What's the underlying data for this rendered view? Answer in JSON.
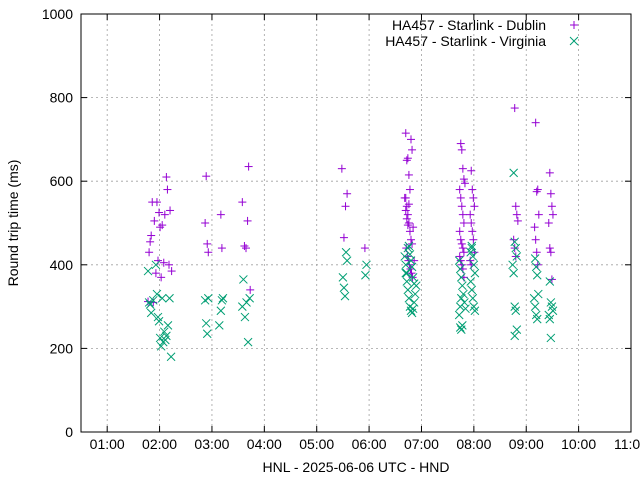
{
  "chart_data": {
    "type": "scatter",
    "title": "",
    "xlabel": "HNL - 2025-06-06 UTC - HND",
    "ylabel": "Round trip time (ms)",
    "xlim": [
      0.5,
      11.0
    ],
    "ylim": [
      0,
      1000
    ],
    "grid": true,
    "legend_position": "top-right",
    "x_ticks": [
      {
        "value": 1,
        "label": "01:00"
      },
      {
        "value": 2,
        "label": "02:00"
      },
      {
        "value": 3,
        "label": "03:00"
      },
      {
        "value": 4,
        "label": "04:00"
      },
      {
        "value": 5,
        "label": "05:00"
      },
      {
        "value": 6,
        "label": "06:00"
      },
      {
        "value": 7,
        "label": "07:00"
      },
      {
        "value": 8,
        "label": "08:00"
      },
      {
        "value": 9,
        "label": "09:00"
      },
      {
        "value": 10,
        "label": "10:00"
      },
      {
        "value": 11,
        "label": "11:00"
      }
    ],
    "y_ticks": [
      {
        "value": 0,
        "label": "0"
      },
      {
        "value": 200,
        "label": "200"
      },
      {
        "value": 400,
        "label": "400"
      },
      {
        "value": 600,
        "label": "600"
      },
      {
        "value": 800,
        "label": "800"
      },
      {
        "value": 1000,
        "label": "1000"
      }
    ],
    "series": [
      {
        "name": "HA457 - Starlink - Dublin",
        "marker": "plus",
        "color": "#9400d3",
        "points": [
          [
            1.78,
            312
          ],
          [
            1.8,
            430
          ],
          [
            1.82,
            455
          ],
          [
            1.84,
            470
          ],
          [
            1.86,
            550
          ],
          [
            1.88,
            310
          ],
          [
            1.9,
            505
          ],
          [
            1.93,
            380
          ],
          [
            1.95,
            550
          ],
          [
            1.97,
            410
          ],
          [
            1.99,
            525
          ],
          [
            2.01,
            490
          ],
          [
            2.03,
            370
          ],
          [
            2.05,
            495
          ],
          [
            2.08,
            405
          ],
          [
            2.1,
            520
          ],
          [
            2.13,
            610
          ],
          [
            2.15,
            580
          ],
          [
            2.18,
            400
          ],
          [
            2.2,
            530
          ],
          [
            2.23,
            385
          ],
          [
            2.87,
            500
          ],
          [
            2.89,
            612
          ],
          [
            2.91,
            450
          ],
          [
            2.93,
            430
          ],
          [
            3.17,
            520
          ],
          [
            3.19,
            440
          ],
          [
            3.58,
            550
          ],
          [
            3.62,
            445
          ],
          [
            3.65,
            440
          ],
          [
            3.68,
            505
          ],
          [
            3.7,
            635
          ],
          [
            3.73,
            340
          ],
          [
            5.48,
            630
          ],
          [
            5.52,
            465
          ],
          [
            5.55,
            540
          ],
          [
            5.58,
            570
          ],
          [
            5.92,
            440
          ],
          [
            6.7,
            715
          ],
          [
            6.72,
            650
          ],
          [
            6.74,
            655
          ],
          [
            6.76,
            615
          ],
          [
            6.78,
            580
          ],
          [
            6.8,
            700
          ],
          [
            6.82,
            675
          ],
          [
            6.7,
            560
          ],
          [
            6.72,
            540
          ],
          [
            6.74,
            520
          ],
          [
            6.76,
            500
          ],
          [
            6.78,
            480
          ],
          [
            6.8,
            460
          ],
          [
            6.82,
            450
          ],
          [
            6.71,
            440
          ],
          [
            6.73,
            420
          ],
          [
            6.75,
            410
          ],
          [
            6.77,
            400
          ],
          [
            6.79,
            390
          ],
          [
            6.81,
            380
          ],
          [
            6.83,
            370
          ],
          [
            6.7,
            530
          ],
          [
            6.72,
            510
          ],
          [
            6.74,
            495
          ],
          [
            6.76,
            545
          ],
          [
            6.84,
            490
          ],
          [
            6.86,
            410
          ],
          [
            6.68,
            560
          ],
          [
            7.75,
            690
          ],
          [
            7.77,
            675
          ],
          [
            7.79,
            630
          ],
          [
            7.81,
            605
          ],
          [
            7.83,
            595
          ],
          [
            7.73,
            580
          ],
          [
            7.75,
            560
          ],
          [
            7.77,
            540
          ],
          [
            7.79,
            520
          ],
          [
            7.81,
            500
          ],
          [
            7.73,
            480
          ],
          [
            7.75,
            460
          ],
          [
            7.77,
            450
          ],
          [
            7.79,
            440
          ],
          [
            7.81,
            430
          ],
          [
            7.73,
            420
          ],
          [
            7.75,
            410
          ],
          [
            7.77,
            400
          ],
          [
            7.79,
            390
          ],
          [
            7.81,
            370
          ],
          [
            7.95,
            625
          ],
          [
            7.97,
            580
          ],
          [
            7.99,
            560
          ],
          [
            8.01,
            540
          ],
          [
            7.93,
            520
          ],
          [
            7.95,
            500
          ],
          [
            7.97,
            480
          ],
          [
            7.99,
            460
          ],
          [
            8.01,
            430
          ],
          [
            7.93,
            410
          ],
          [
            7.95,
            400
          ],
          [
            8.78,
            775
          ],
          [
            8.8,
            540
          ],
          [
            8.82,
            520
          ],
          [
            8.84,
            505
          ],
          [
            8.76,
            460
          ],
          [
            8.78,
            440
          ],
          [
            8.8,
            420
          ],
          [
            9.18,
            740
          ],
          [
            9.2,
            575
          ],
          [
            9.22,
            580
          ],
          [
            9.24,
            520
          ],
          [
            9.16,
            490
          ],
          [
            9.18,
            460
          ],
          [
            9.2,
            430
          ],
          [
            9.22,
            400
          ],
          [
            9.45,
            620
          ],
          [
            9.47,
            570
          ],
          [
            9.49,
            540
          ],
          [
            9.51,
            520
          ],
          [
            9.43,
            500
          ],
          [
            9.45,
            440
          ],
          [
            9.47,
            430
          ],
          [
            9.49,
            365
          ]
        ]
      },
      {
        "name": "HA457 - Starlink - Virginia",
        "marker": "cross",
        "color": "#009e73",
        "points": [
          [
            1.78,
            385
          ],
          [
            1.8,
            310
          ],
          [
            1.82,
            305
          ],
          [
            1.84,
            285
          ],
          [
            1.88,
            315
          ],
          [
            1.93,
            400
          ],
          [
            1.95,
            330
          ],
          [
            1.97,
            275
          ],
          [
            1.99,
            265
          ],
          [
            2.01,
            225
          ],
          [
            2.03,
            205
          ],
          [
            2.05,
            320
          ],
          [
            2.07,
            215
          ],
          [
            2.09,
            240
          ],
          [
            2.11,
            220
          ],
          [
            2.13,
            230
          ],
          [
            2.16,
            255
          ],
          [
            2.19,
            320
          ],
          [
            2.22,
            180
          ],
          [
            2.87,
            315
          ],
          [
            2.89,
            260
          ],
          [
            2.91,
            235
          ],
          [
            2.93,
            320
          ],
          [
            3.14,
            255
          ],
          [
            3.17,
            290
          ],
          [
            3.19,
            315
          ],
          [
            3.21,
            320
          ],
          [
            3.58,
            300
          ],
          [
            3.6,
            365
          ],
          [
            3.63,
            275
          ],
          [
            3.66,
            310
          ],
          [
            3.69,
            215
          ],
          [
            3.72,
            320
          ],
          [
            5.5,
            370
          ],
          [
            5.52,
            345
          ],
          [
            5.54,
            325
          ],
          [
            5.56,
            430
          ],
          [
            5.58,
            410
          ],
          [
            5.93,
            375
          ],
          [
            5.95,
            400
          ],
          [
            6.68,
            420
          ],
          [
            6.7,
            380
          ],
          [
            6.72,
            360
          ],
          [
            6.74,
            340
          ],
          [
            6.76,
            320
          ],
          [
            6.78,
            300
          ],
          [
            6.8,
            290
          ],
          [
            6.82,
            285
          ],
          [
            6.84,
            295
          ],
          [
            6.86,
            310
          ],
          [
            6.88,
            330
          ],
          [
            6.9,
            350
          ],
          [
            6.7,
            400
          ],
          [
            6.72,
            380
          ],
          [
            6.74,
            440
          ],
          [
            6.76,
            445
          ],
          [
            6.78,
            425
          ],
          [
            6.8,
            410
          ],
          [
            6.82,
            395
          ],
          [
            6.84,
            370
          ],
          [
            6.86,
            355
          ],
          [
            7.72,
            410
          ],
          [
            7.74,
            390
          ],
          [
            7.76,
            370
          ],
          [
            7.78,
            350
          ],
          [
            7.8,
            330
          ],
          [
            7.82,
            310
          ],
          [
            7.84,
            295
          ],
          [
            7.74,
            250
          ],
          [
            7.76,
            245
          ],
          [
            7.78,
            255
          ],
          [
            7.72,
            280
          ],
          [
            7.74,
            300
          ],
          [
            7.76,
            320
          ],
          [
            7.96,
            440
          ],
          [
            7.98,
            420
          ],
          [
            8.0,
            400
          ],
          [
            8.02,
            380
          ],
          [
            7.94,
            360
          ],
          [
            7.96,
            340
          ],
          [
            7.98,
            320
          ],
          [
            8.0,
            300
          ],
          [
            8.02,
            290
          ],
          [
            7.94,
            430
          ],
          [
            7.96,
            445
          ],
          [
            8.76,
            620
          ],
          [
            8.78,
            455
          ],
          [
            8.8,
            440
          ],
          [
            8.82,
            420
          ],
          [
            8.74,
            400
          ],
          [
            8.76,
            380
          ],
          [
            8.78,
            300
          ],
          [
            8.8,
            290
          ],
          [
            8.82,
            245
          ],
          [
            8.78,
            230
          ],
          [
            9.17,
            415
          ],
          [
            9.19,
            395
          ],
          [
            9.21,
            375
          ],
          [
            9.23,
            330
          ],
          [
            9.15,
            320
          ],
          [
            9.17,
            300
          ],
          [
            9.19,
            280
          ],
          [
            9.21,
            270
          ],
          [
            9.45,
            360
          ],
          [
            9.47,
            310
          ],
          [
            9.49,
            300
          ],
          [
            9.51,
            290
          ],
          [
            9.43,
            280
          ],
          [
            9.45,
            270
          ],
          [
            9.47,
            225
          ]
        ]
      }
    ]
  }
}
